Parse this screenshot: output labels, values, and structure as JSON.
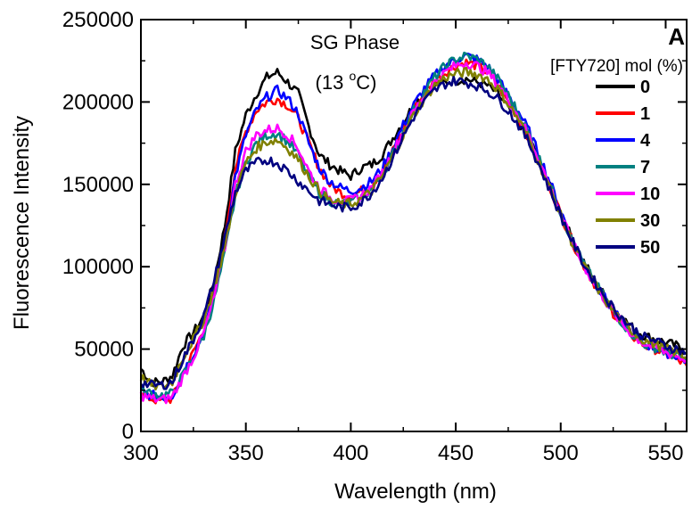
{
  "chart_data": {
    "type": "line",
    "xlabel": "Wavelength (nm)",
    "ylabel": "Fluorescence Intensity",
    "xlim": [
      300,
      560
    ],
    "ylim": [
      0,
      250000
    ],
    "x_ticks": [
      300,
      350,
      400,
      450,
      500,
      550
    ],
    "x_tick_labels": [
      "300",
      "350",
      "400",
      "450",
      "500",
      "550"
    ],
    "y_ticks": [
      0,
      50000,
      100000,
      150000,
      200000,
      250000
    ],
    "y_tick_labels": [
      "0",
      "50000",
      "100000",
      "150000",
      "200000",
      "250000"
    ],
    "annotations": {
      "phase": "SG Phase",
      "temp_prefix": "(13 ",
      "temp_sup": "o",
      "temp_suffix": "C)",
      "panel_label": "A"
    },
    "legend": {
      "title": "[FTY720] mol (%)",
      "position": "top-right"
    },
    "x": [
      300,
      305,
      310,
      315,
      320,
      325,
      330,
      335,
      340,
      345,
      350,
      355,
      360,
      365,
      370,
      375,
      380,
      385,
      390,
      395,
      400,
      405,
      410,
      415,
      420,
      425,
      430,
      435,
      440,
      445,
      450,
      455,
      460,
      465,
      470,
      475,
      480,
      485,
      490,
      495,
      500,
      505,
      510,
      515,
      520,
      525,
      530,
      535,
      540,
      545,
      550,
      555,
      560
    ],
    "series": [
      {
        "name": "0",
        "color": "#000000",
        "values": [
          38000,
          30000,
          30000,
          34000,
          52000,
          60000,
          70000,
          92000,
          125000,
          170000,
          192000,
          205000,
          215000,
          218000,
          212000,
          205000,
          185000,
          168000,
          162000,
          158000,
          155000,
          160000,
          162000,
          168000,
          178000,
          188000,
          198000,
          205000,
          210000,
          212000,
          213000,
          214000,
          212000,
          210000,
          205000,
          196000,
          188000,
          178000,
          163000,
          148000,
          133000,
          118000,
          105000,
          94000,
          84000,
          75000,
          68000,
          62000,
          58000,
          56000,
          54000,
          52000,
          48000
        ]
      },
      {
        "name": "1",
        "color": "#ff0000",
        "values": [
          22000,
          20000,
          18000,
          20000,
          35000,
          48000,
          62000,
          85000,
          118000,
          160000,
          182000,
          195000,
          200000,
          202000,
          198000,
          190000,
          175000,
          160000,
          150000,
          145000,
          143000,
          146000,
          150000,
          158000,
          170000,
          183000,
          195000,
          205000,
          213000,
          218000,
          222000,
          224000,
          222000,
          218000,
          210000,
          200000,
          190000,
          178000,
          163000,
          148000,
          132000,
          117000,
          103000,
          92000,
          82000,
          72000,
          64000,
          57000,
          52000,
          50000,
          47000,
          44000,
          40000
        ]
      },
      {
        "name": "4",
        "color": "#0000ff",
        "values": [
          24000,
          22000,
          21000,
          22000,
          36000,
          47000,
          60000,
          83000,
          115000,
          155000,
          180000,
          195000,
          203000,
          207000,
          202000,
          193000,
          175000,
          160000,
          152000,
          148000,
          146000,
          148000,
          152000,
          160000,
          172000,
          186000,
          198000,
          208000,
          216000,
          222000,
          226000,
          228000,
          226000,
          222000,
          214000,
          204000,
          194000,
          182000,
          167000,
          151000,
          134000,
          118000,
          104000,
          93000,
          83000,
          73000,
          65000,
          58000,
          53000,
          51000,
          48000,
          46000,
          43000
        ]
      },
      {
        "name": "7",
        "color": "#008080",
        "values": [
          25000,
          23000,
          22000,
          23000,
          34000,
          45000,
          58000,
          80000,
          108000,
          143000,
          163000,
          175000,
          180000,
          181000,
          176000,
          168000,
          155000,
          145000,
          140000,
          138000,
          139000,
          142000,
          147000,
          156000,
          168000,
          182000,
          195000,
          206000,
          215000,
          222000,
          226000,
          228000,
          226000,
          222000,
          214000,
          204000,
          193000,
          180000,
          165000,
          149000,
          133000,
          117000,
          104000,
          93000,
          83000,
          73000,
          65000,
          58000,
          53000,
          51000,
          48000,
          46000,
          43000
        ]
      },
      {
        "name": "10",
        "color": "#ff00ff",
        "values": [
          22000,
          20000,
          19000,
          21000,
          33000,
          45000,
          60000,
          82000,
          112000,
          150000,
          170000,
          180000,
          183000,
          184000,
          180000,
          172000,
          158000,
          148000,
          142000,
          140000,
          140000,
          143000,
          148000,
          157000,
          169000,
          182000,
          194000,
          204000,
          212000,
          218000,
          222000,
          224000,
          222000,
          218000,
          211000,
          201000,
          191000,
          179000,
          164000,
          148000,
          132000,
          116000,
          103000,
          92000,
          82000,
          72000,
          64000,
          58000,
          53000,
          51000,
          48000,
          46000,
          43000
        ]
      },
      {
        "name": "30",
        "color": "#808000",
        "values": [
          33000,
          28000,
          27000,
          30000,
          45000,
          56000,
          68000,
          88000,
          112000,
          145000,
          163000,
          172000,
          176000,
          177000,
          172000,
          165000,
          155000,
          146000,
          140000,
          138000,
          138000,
          141000,
          146000,
          155000,
          167000,
          180000,
          192000,
          202000,
          210000,
          215000,
          217000,
          218000,
          217000,
          214000,
          208000,
          199000,
          189000,
          177000,
          162000,
          147000,
          131000,
          116000,
          103000,
          92000,
          82000,
          73000,
          66000,
          60000,
          55000,
          53000,
          50000,
          48000,
          45000
        ]
      },
      {
        "name": "50",
        "color": "#000080",
        "values": [
          30000,
          28000,
          28000,
          30000,
          44000,
          56000,
          70000,
          92000,
          118000,
          145000,
          158000,
          163000,
          165000,
          163000,
          158000,
          152000,
          146000,
          140000,
          138000,
          136000,
          136000,
          139000,
          145000,
          154000,
          166000,
          179000,
          191000,
          200000,
          207000,
          211000,
          213000,
          212000,
          210000,
          207000,
          202000,
          195000,
          186000,
          175000,
          161000,
          146000,
          131000,
          117000,
          104000,
          93000,
          84000,
          75000,
          68000,
          62000,
          57000,
          55000,
          52000,
          50000,
          48000
        ]
      }
    ]
  }
}
